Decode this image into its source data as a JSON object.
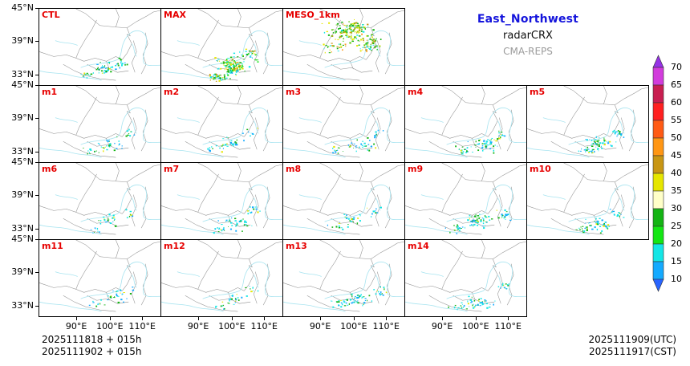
{
  "header": {
    "title": "East_Northwest",
    "subtitle": "radarCRX",
    "model": "CMA-REPS",
    "title_color": "#1414DC",
    "subtitle_color": "#111111",
    "model_color": "#9b9b9b"
  },
  "panel_label_color": "#E60000",
  "panels": [
    {
      "label": "CTL",
      "row": 0,
      "col": 0,
      "echo": "ctl",
      "seed": 5
    },
    {
      "label": "MAX",
      "row": 0,
      "col": 1,
      "echo": "max",
      "seed": 7
    },
    {
      "label": "MESO_1km",
      "row": 0,
      "col": 2,
      "echo": "meso",
      "seed": 9
    },
    {
      "label": "m1",
      "row": 1,
      "col": 0,
      "echo": "member",
      "seed": 11
    },
    {
      "label": "m2",
      "row": 1,
      "col": 1,
      "echo": "member",
      "seed": 12
    },
    {
      "label": "m3",
      "row": 1,
      "col": 2,
      "echo": "member",
      "seed": 13
    },
    {
      "label": "m4",
      "row": 1,
      "col": 3,
      "echo": "member",
      "seed": 14
    },
    {
      "label": "m5",
      "row": 1,
      "col": 4,
      "echo": "member",
      "seed": 15
    },
    {
      "label": "m6",
      "row": 2,
      "col": 0,
      "echo": "member",
      "seed": 16
    },
    {
      "label": "m7",
      "row": 2,
      "col": 1,
      "echo": "member",
      "seed": 17
    },
    {
      "label": "m8",
      "row": 2,
      "col": 2,
      "echo": "member",
      "seed": 18
    },
    {
      "label": "m9",
      "row": 2,
      "col": 3,
      "echo": "member",
      "seed": 19
    },
    {
      "label": "m10",
      "row": 2,
      "col": 4,
      "echo": "member",
      "seed": 20
    },
    {
      "label": "m11",
      "row": 3,
      "col": 0,
      "echo": "member",
      "seed": 21
    },
    {
      "label": "m12",
      "row": 3,
      "col": 1,
      "echo": "member",
      "seed": 22
    },
    {
      "label": "m13",
      "row": 3,
      "col": 2,
      "echo": "member",
      "seed": 23
    },
    {
      "label": "m14",
      "row": 3,
      "col": 3,
      "echo": "member",
      "seed": 24
    }
  ],
  "axes": {
    "lat_labels": [
      "45°N",
      "39°N",
      "33°N"
    ],
    "lon_labels": [
      "90°E",
      "100°E",
      "110°E"
    ]
  },
  "colorbar": {
    "values": [
      70,
      65,
      60,
      55,
      50,
      45,
      40,
      35,
      30,
      25,
      20,
      15,
      10
    ],
    "segment_colors": [
      "#D23CDC",
      "#C81E50",
      "#FF2020",
      "#FF5A14",
      "#FF9614",
      "#C89614",
      "#E6E600",
      "#FFFFC8",
      "#14B414",
      "#14E614",
      "#14E6E6",
      "#14AAFF"
    ],
    "top_arrow_color": "#9632E6",
    "bottom_arrow_color": "#2864FF"
  },
  "footer": {
    "left_line1": "2025111818 + 015h",
    "left_line2": "2025111902 + 015h",
    "right_line1": "2025111909(UTC)",
    "right_line2": "2025111917(CST)"
  },
  "chart_data": {
    "type": "heatmap",
    "title": "East_Northwest radarCRX (CMA-REPS)",
    "panel_labels": [
      "CTL",
      "MAX",
      "MESO_1km",
      "m1",
      "m2",
      "m3",
      "m4",
      "m5",
      "m6",
      "m7",
      "m8",
      "m9",
      "m10",
      "m11",
      "m12",
      "m13",
      "m14"
    ],
    "grid": {
      "rows": 4,
      "cols_per_row": [
        3,
        5,
        5,
        4
      ]
    },
    "x_ticks": [
      "90°E",
      "100°E",
      "110°E"
    ],
    "y_ticks": [
      "45°N",
      "39°N",
      "33°N"
    ],
    "color_scale_levels": [
      10,
      15,
      20,
      25,
      30,
      35,
      40,
      45,
      50,
      55,
      60,
      65,
      70
    ],
    "legend_position": "right",
    "annotations": [
      "2025111818 + 015h",
      "2025111902 + 015h",
      "2025111909(UTC)",
      "2025111917(CST)"
    ]
  }
}
